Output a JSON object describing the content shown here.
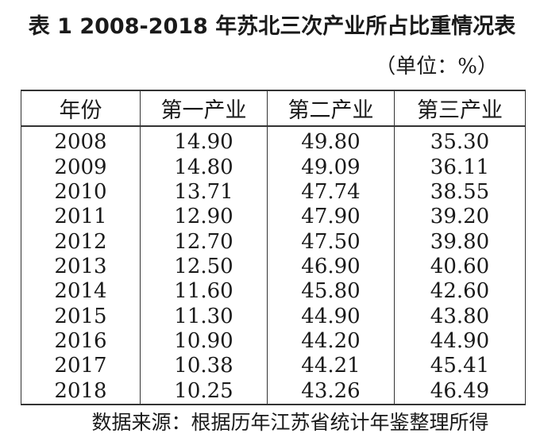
{
  "title": "表 1   2008-2018 年苏北三次产业所占比重情况表",
  "unit": "（单位：%）",
  "table": {
    "headers": [
      "年份",
      "第一产业",
      "第二产业",
      "第三产业"
    ],
    "rows": [
      [
        "2008",
        "14.90",
        "49.80",
        "35.30"
      ],
      [
        "2009",
        "14.80",
        "49.09",
        "36.11"
      ],
      [
        "2010",
        "13.71",
        "47.74",
        "38.55"
      ],
      [
        "2011",
        "12.90",
        "47.90",
        "39.20"
      ],
      [
        "2012",
        "12.70",
        "47.50",
        "39.80"
      ],
      [
        "2013",
        "12.50",
        "46.90",
        "40.60"
      ],
      [
        "2014",
        "11.60",
        "45.80",
        "42.60"
      ],
      [
        "2015",
        "11.30",
        "44.90",
        "43.80"
      ],
      [
        "2016",
        "10.90",
        "44.20",
        "44.90"
      ],
      [
        "2017",
        "10.38",
        "44.21",
        "45.41"
      ],
      [
        "2018",
        "10.25",
        "43.26",
        "46.49"
      ]
    ]
  },
  "source": "数据来源：根据历年江苏省统计年鉴整理所得"
}
